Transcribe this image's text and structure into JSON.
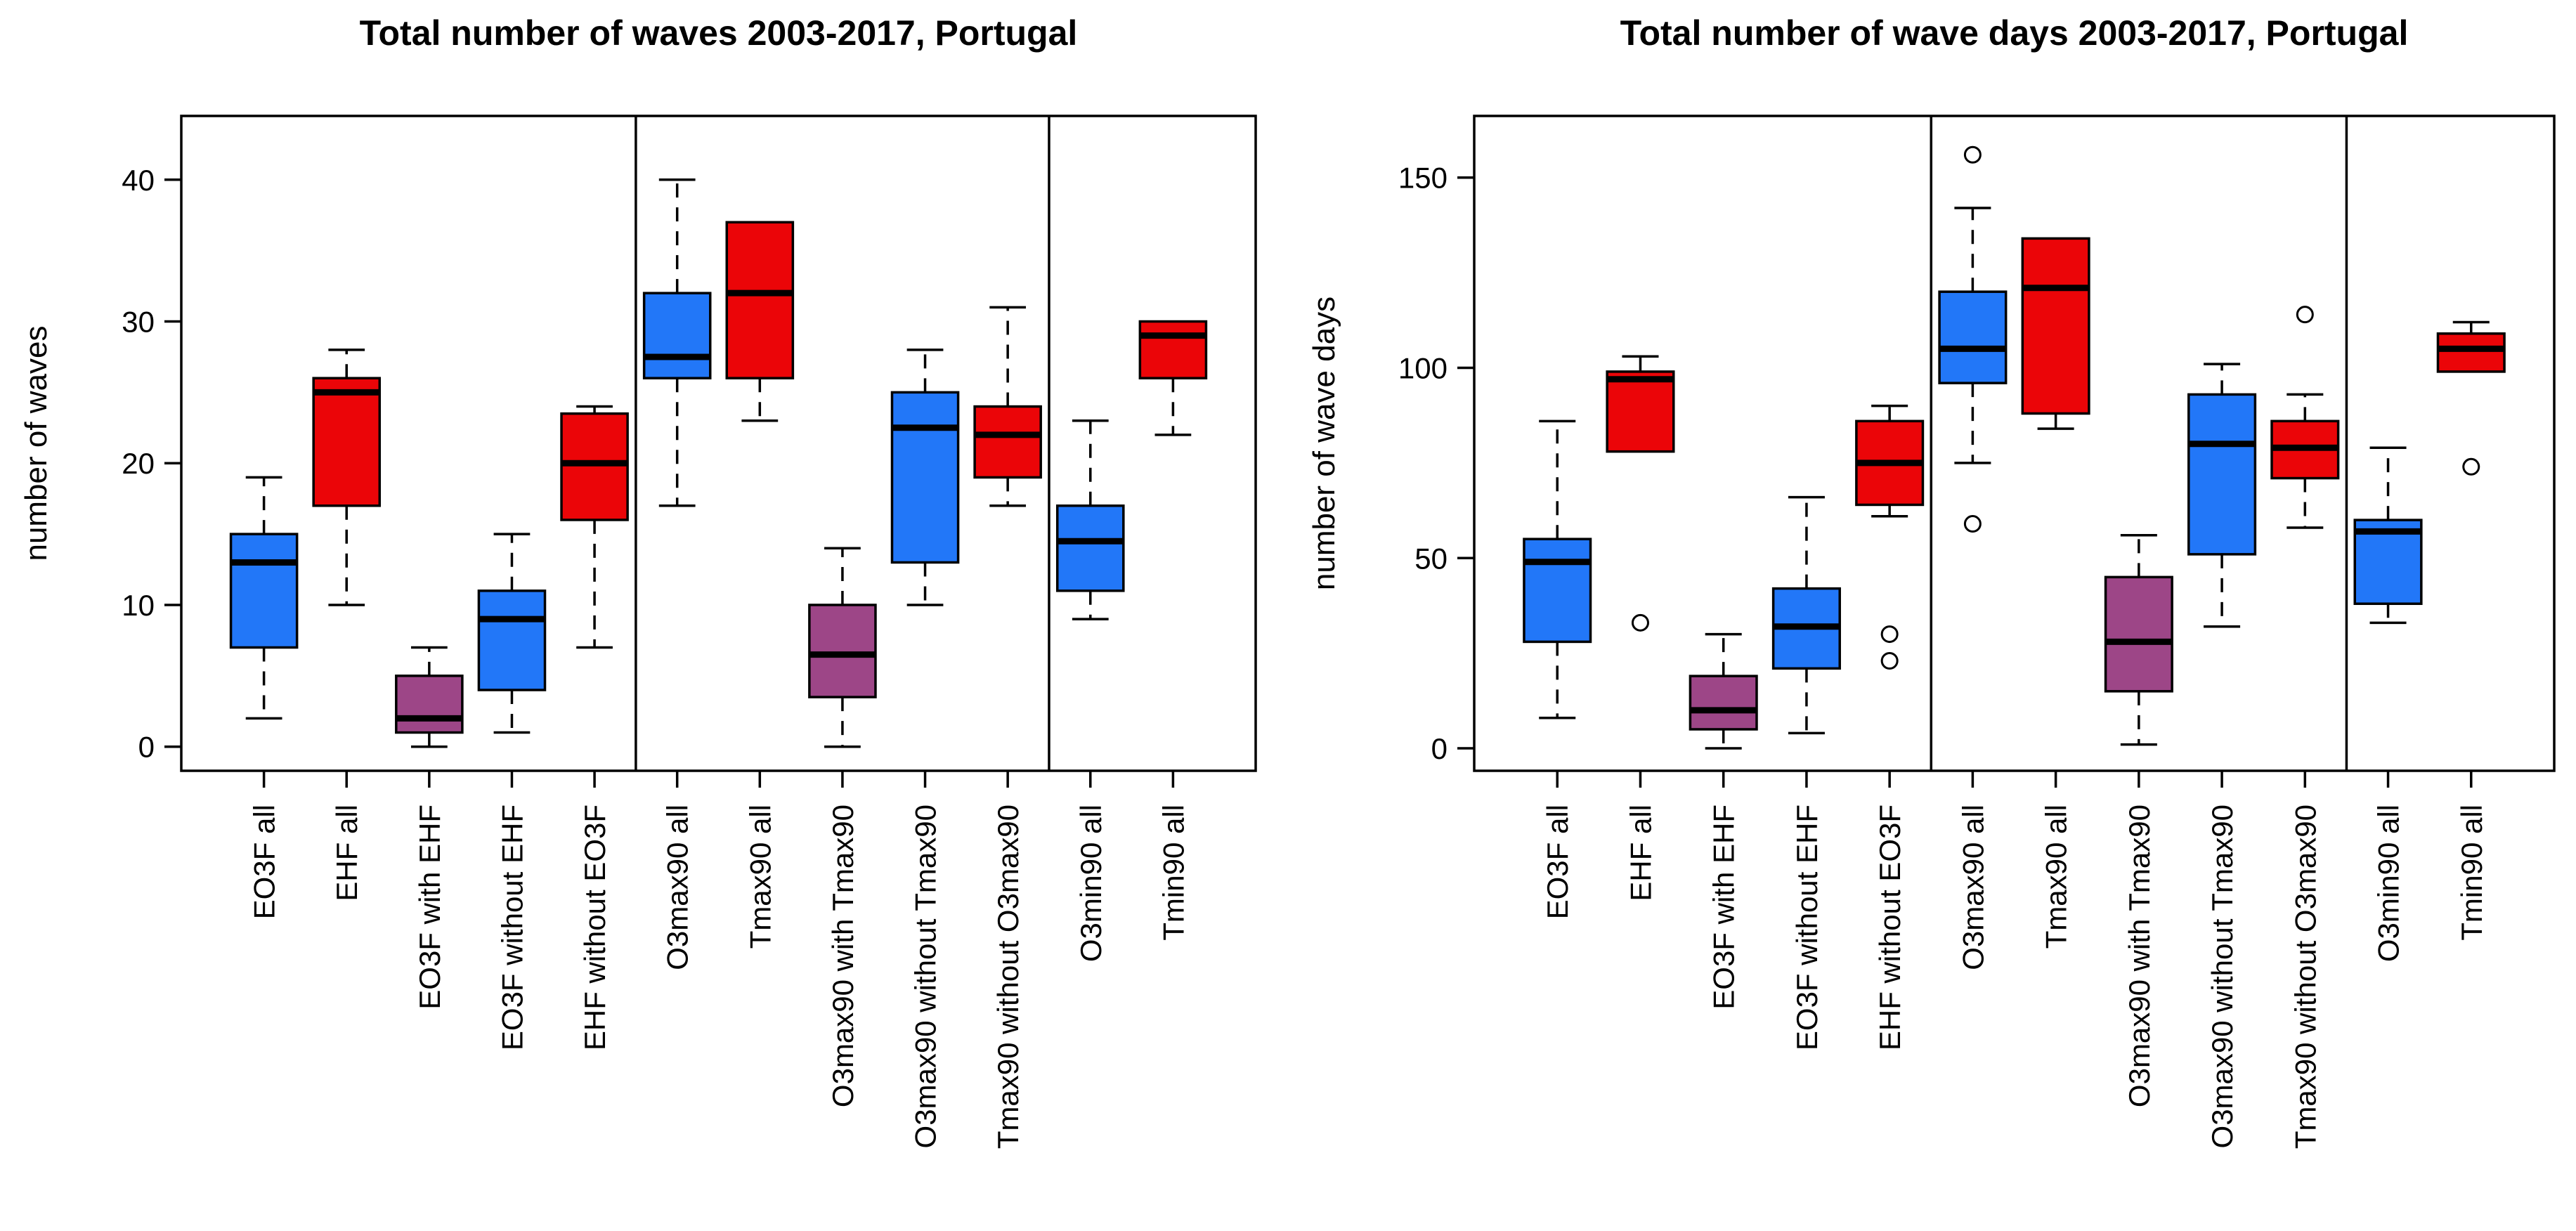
{
  "figure": {
    "background": "#FFFFFF",
    "text_color": "#000000"
  },
  "palette": {
    "blue": "#2277F8",
    "red": "#EB0508",
    "purple": "#9D4687",
    "axis": "#000000"
  },
  "chart_data": [
    {
      "type": "boxplot",
      "title": "Total number of waves 2003-2017, Portugal",
      "ylabel": "number of waves",
      "yticks": [
        0,
        10,
        20,
        30,
        40
      ],
      "ylim": [
        -1.7,
        44.5
      ],
      "grid": false,
      "legend": "none",
      "group_separators_after": [
        5,
        10
      ],
      "categories": [
        "EO3F all",
        "EHF all",
        "EO3F with EHF",
        "EO3F without EHF",
        "EHF without EO3F",
        "O3max90 all",
        "Tmax90 all",
        "O3max90 with Tmax90",
        "O3max90 without Tmax90",
        "Tmax90 without O3max90",
        "O3min90 all",
        "Tmin90 all"
      ],
      "series": [
        {
          "label": "EO3F all",
          "color": "blue",
          "whisker_low": 2,
          "q1": 7,
          "median": 13,
          "q3": 15,
          "whisker_high": 19,
          "outliers": []
        },
        {
          "label": "EHF all",
          "color": "red",
          "whisker_low": 10,
          "q1": 17,
          "median": 25,
          "q3": 26,
          "whisker_high": 28,
          "outliers": []
        },
        {
          "label": "EO3F with EHF",
          "color": "purple",
          "whisker_low": 0,
          "q1": 1,
          "median": 2,
          "q3": 5,
          "whisker_high": 7,
          "outliers": []
        },
        {
          "label": "EO3F without EHF",
          "color": "blue",
          "whisker_low": 1,
          "q1": 4,
          "median": 9,
          "q3": 11,
          "whisker_high": 15,
          "outliers": []
        },
        {
          "label": "EHF without EO3F",
          "color": "red",
          "whisker_low": 7,
          "q1": 16,
          "median": 20,
          "q3": 23.5,
          "whisker_high": 24,
          "outliers": []
        },
        {
          "label": "O3max90 all",
          "color": "blue",
          "whisker_low": 17,
          "q1": 26,
          "median": 27.5,
          "q3": 32,
          "whisker_high": 40,
          "outliers": []
        },
        {
          "label": "Tmax90 all",
          "color": "red",
          "whisker_low": 23,
          "q1": 26,
          "median": 32,
          "q3": 37,
          "whisker_high": 37,
          "outliers": []
        },
        {
          "label": "O3max90 with Tmax90",
          "color": "purple",
          "whisker_low": 0,
          "q1": 3.5,
          "median": 6.5,
          "q3": 10,
          "whisker_high": 14,
          "outliers": []
        },
        {
          "label": "O3max90 without Tmax90",
          "color": "blue",
          "whisker_low": 10,
          "q1": 13,
          "median": 22.5,
          "q3": 25,
          "whisker_high": 28,
          "outliers": []
        },
        {
          "label": "Tmax90 without O3max90",
          "color": "red",
          "whisker_low": 17,
          "q1": 19,
          "median": 22,
          "q3": 24,
          "whisker_high": 31,
          "outliers": []
        },
        {
          "label": "O3min90 all",
          "color": "blue",
          "whisker_low": 9,
          "q1": 11,
          "median": 14.5,
          "q3": 17,
          "whisker_high": 23,
          "outliers": []
        },
        {
          "label": "Tmin90 all",
          "color": "red",
          "whisker_low": 22,
          "q1": 26,
          "median": 29,
          "q3": 30,
          "whisker_high": 30,
          "outliers": []
        }
      ]
    },
    {
      "type": "boxplot",
      "title": "Total number of wave days 2003-2017, Portugal",
      "ylabel": "number of wave days",
      "yticks": [
        0,
        50,
        100,
        150
      ],
      "ylim": [
        -5.9,
        166.2
      ],
      "grid": false,
      "legend": "none",
      "group_separators_after": [
        5,
        10
      ],
      "categories": [
        "EO3F all",
        "EHF all",
        "EO3F with EHF",
        "EO3F without EHF",
        "EHF without EO3F",
        "O3max90 all",
        "Tmax90 all",
        "O3max90 with Tmax90",
        "O3max90 without Tmax90",
        "Tmax90 without O3max90",
        "O3min90 all",
        "Tmin90 all"
      ],
      "series": [
        {
          "label": "EO3F all",
          "color": "blue",
          "whisker_low": 8,
          "q1": 28,
          "median": 49,
          "q3": 55,
          "whisker_high": 86,
          "outliers": []
        },
        {
          "label": "EHF all",
          "color": "red",
          "whisker_low": 78,
          "q1": 78,
          "median": 97,
          "q3": 99,
          "whisker_high": 103,
          "outliers": [
            33
          ]
        },
        {
          "label": "EO3F with EHF",
          "color": "purple",
          "whisker_low": 0,
          "q1": 5,
          "median": 10,
          "q3": 19,
          "whisker_high": 30,
          "outliers": []
        },
        {
          "label": "EO3F without EHF",
          "color": "blue",
          "whisker_low": 4,
          "q1": 21,
          "median": 32,
          "q3": 42,
          "whisker_high": 66,
          "outliers": []
        },
        {
          "label": "EHF without EO3F",
          "color": "red",
          "whisker_low": 61,
          "q1": 64,
          "median": 75,
          "q3": 86,
          "whisker_high": 90,
          "outliers": [
            30,
            23
          ]
        },
        {
          "label": "O3max90 all",
          "color": "blue",
          "whisker_low": 75,
          "q1": 96,
          "median": 105,
          "q3": 120,
          "whisker_high": 142,
          "outliers": [
            156,
            59
          ]
        },
        {
          "label": "Tmax90 all",
          "color": "red",
          "whisker_low": 84,
          "q1": 88,
          "median": 121,
          "q3": 134,
          "whisker_high": 134,
          "outliers": []
        },
        {
          "label": "O3max90 with Tmax90",
          "color": "purple",
          "whisker_low": 1,
          "q1": 15,
          "median": 28,
          "q3": 45,
          "whisker_high": 56,
          "outliers": []
        },
        {
          "label": "O3max90 without Tmax90",
          "color": "blue",
          "whisker_low": 32,
          "q1": 51,
          "median": 80,
          "q3": 93,
          "whisker_high": 101,
          "outliers": []
        },
        {
          "label": "Tmax90 without O3max90",
          "color": "red",
          "whisker_low": 58,
          "q1": 71,
          "median": 79,
          "q3": 86,
          "whisker_high": 93,
          "outliers": [
            114
          ]
        },
        {
          "label": "O3min90 all",
          "color": "blue",
          "whisker_low": 33,
          "q1": 38,
          "median": 57,
          "q3": 60,
          "whisker_high": 79,
          "outliers": []
        },
        {
          "label": "Tmin90 all",
          "color": "red",
          "whisker_low": 99,
          "q1": 99,
          "median": 105,
          "q3": 109,
          "whisker_high": 112,
          "outliers": [
            74
          ]
        }
      ]
    }
  ]
}
